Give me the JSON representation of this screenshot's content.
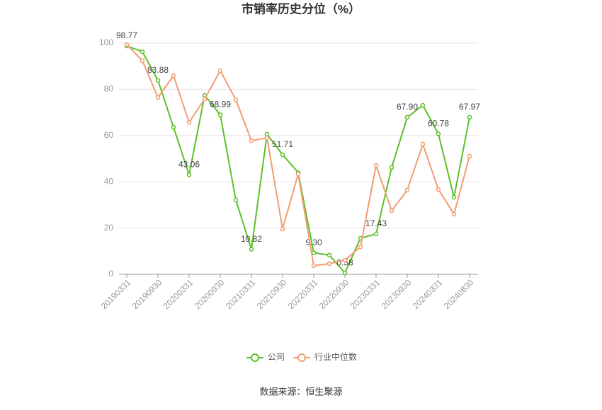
{
  "chart_data": {
    "type": "line",
    "title": "市销率历史分位（%）",
    "categories": [
      "20190331",
      null,
      "20190930",
      null,
      "20200331",
      null,
      "20200930",
      null,
      "20210331",
      null,
      "20210930",
      null,
      "20220331",
      null,
      "20220930",
      null,
      "20230331",
      null,
      "20230930",
      null,
      "20240331",
      null,
      "20240830"
    ],
    "series": [
      {
        "name": "公司",
        "color": "#5cc02a",
        "values": [
          98.77,
          96.3,
          83.88,
          63.6,
          43.06,
          77.4,
          68.99,
          32.1,
          10.82,
          60.6,
          51.71,
          44.0,
          9.3,
          8.3,
          0.58,
          15.6,
          17.43,
          46.2,
          67.9,
          73.1,
          60.78,
          33.3,
          67.97
        ],
        "value_labels": [
          "98.77",
          null,
          "83.88",
          null,
          "43.06",
          null,
          "68.99",
          null,
          "10.82",
          null,
          "51.71",
          null,
          "9.30",
          null,
          "0.58",
          null,
          "17.43",
          null,
          "67.90",
          null,
          "60.78",
          null,
          "67.97"
        ]
      },
      {
        "name": "行业中位数",
        "color": "#f29c73",
        "values": [
          99.4,
          92.4,
          76.5,
          85.9,
          65.7,
          75.8,
          88.1,
          75.5,
          57.8,
          59.0,
          19.6,
          43.4,
          3.7,
          4.6,
          6.1,
          11.9,
          47.1,
          27.5,
          36.4,
          56.3,
          36.7,
          26.0,
          51.1
        ]
      }
    ],
    "ylim": [
      0,
      100
    ],
    "yticks": [
      0,
      20,
      40,
      60,
      80,
      100
    ],
    "grid": true,
    "legend": "bottom",
    "source": "数据来源：恒生聚源"
  }
}
